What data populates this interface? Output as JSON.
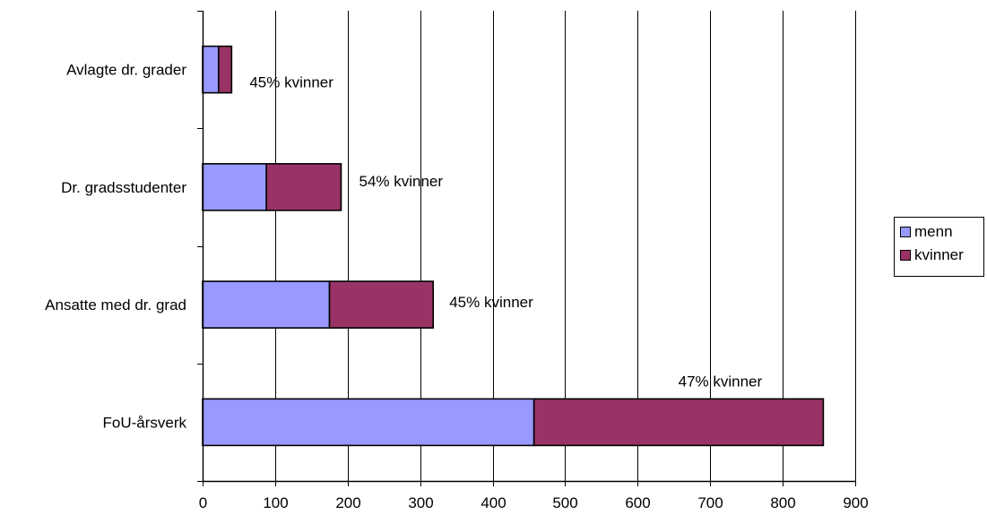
{
  "chart_data": {
    "type": "bar",
    "orientation": "horizontal",
    "stacked": true,
    "categories": [
      "Avlagte dr. grader",
      "Dr. gradsstudenter",
      "Ansatte med dr. grad",
      "FoU-årsverk"
    ],
    "series": [
      {
        "name": "menn",
        "values": [
          22,
          88,
          175,
          457
        ],
        "color": "#9999ff"
      },
      {
        "name": "kvinner",
        "values": [
          18,
          103,
          143,
          399
        ],
        "color": "#993366"
      }
    ],
    "annotations": [
      "45% kvinner",
      "54% kvinner",
      "45% kvinner",
      "47% kvinner"
    ],
    "x_ticks": [
      0,
      100,
      200,
      300,
      400,
      500,
      600,
      700,
      800,
      900
    ],
    "xlim": [
      0,
      900
    ],
    "grid": "vertical",
    "legend": "right",
    "title": "",
    "xlabel": "",
    "ylabel": ""
  }
}
